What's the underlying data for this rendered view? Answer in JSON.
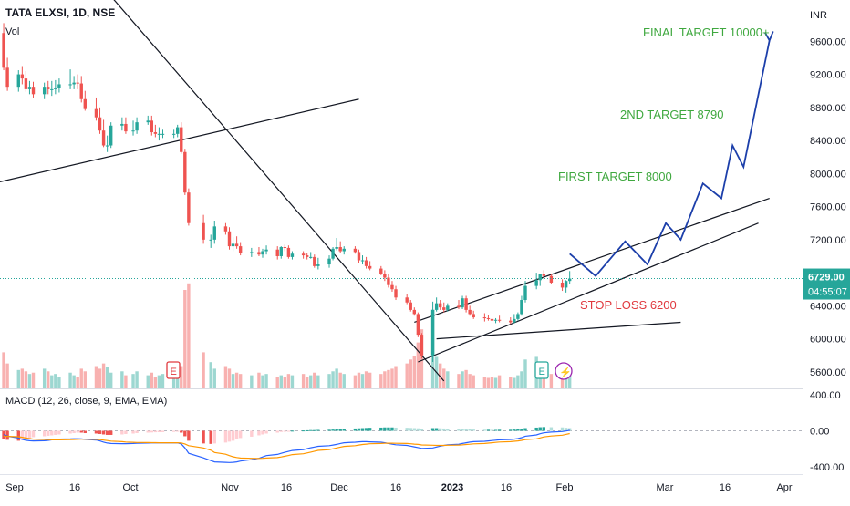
{
  "header": {
    "symbol": "TATA ELXSI, 1D, NSE",
    "vol_label": "Vol",
    "currency": "INR"
  },
  "price_axis": {
    "ticks": [
      5600,
      6000,
      6400,
      6800,
      7200,
      7600,
      8000,
      8400,
      8800,
      9200,
      9600
    ],
    "tick_labels": [
      "5600.00",
      "6000.00",
      "6400.00",
      "6800.00",
      "7200.00",
      "7600.00",
      "8000.00",
      "8400.00",
      "8800.00",
      "9200.00",
      "9600.00"
    ]
  },
  "last_price": {
    "value": 6729,
    "label": "6729.00",
    "countdown": "04:55:07"
  },
  "macd": {
    "title": "MACD (12, 26, close, 9, EMA, EMA)",
    "ticks": [
      400,
      0,
      -400
    ],
    "tick_labels": [
      "400.00",
      "0.00",
      "-400.00"
    ]
  },
  "time_axis": {
    "labels": [
      "Sep",
      "16",
      "Oct",
      "Nov",
      "16",
      "Dec",
      "16",
      "2023",
      "16",
      "Feb",
      "Mar",
      "16",
      "Apr"
    ],
    "label_x": [
      16,
      82,
      143,
      252,
      314,
      372,
      434,
      496,
      555,
      619,
      729,
      795,
      860
    ]
  },
  "annotations": {
    "final_target": "FINAL TARGET 10000+",
    "second_target": "2ND TARGET 8790",
    "first_target": "FIRST TARGET 8000",
    "stop_loss": "STOP LOSS 6200"
  },
  "event_markers": {
    "earnings_symbol": "E",
    "dividend_symbol": "⚡"
  },
  "colors": {
    "up": "#26a69a",
    "down": "#ef5350",
    "projection": "#1c3faa",
    "target_text": "#3fa83f",
    "stop_text": "#e0393e",
    "price_badge": "#26a69a",
    "macd_line": "#2962ff",
    "signal_line": "#ff9800"
  },
  "chart_data": {
    "type": "candlestick",
    "title": "TATA ELXSI, 1D, NSE",
    "x": [
      "2022-09-01",
      "2022-09-02",
      "2022-09-05",
      "2022-09-06",
      "2022-09-07",
      "2022-09-08",
      "2022-09-09",
      "2022-09-12",
      "2022-09-13",
      "2022-09-14",
      "2022-09-15",
      "2022-09-16",
      "2022-09-19",
      "2022-09-20",
      "2022-09-21",
      "2022-09-22",
      "2022-09-23",
      "2022-09-26",
      "2022-09-27",
      "2022-09-28",
      "2022-09-29",
      "2022-09-30",
      "2022-10-03",
      "2022-10-04",
      "2022-10-06",
      "2022-10-07",
      "2022-10-10",
      "2022-10-11",
      "2022-10-12",
      "2022-10-13",
      "2022-10-14",
      "2022-10-17",
      "2022-10-18",
      "2022-10-19",
      "2022-10-20",
      "2022-10-21",
      "2022-10-25",
      "2022-10-27",
      "2022-10-28",
      "2022-10-31",
      "2022-11-01",
      "2022-11-02",
      "2022-11-03",
      "2022-11-04",
      "2022-11-07",
      "2022-11-09",
      "2022-11-10",
      "2022-11-11",
      "2022-11-14",
      "2022-11-15",
      "2022-11-16",
      "2022-11-17",
      "2022-11-18",
      "2022-11-21",
      "2022-11-22",
      "2022-11-23",
      "2022-11-24",
      "2022-11-25",
      "2022-11-28",
      "2022-11-29",
      "2022-11-30",
      "2022-12-01",
      "2022-12-02",
      "2022-12-05",
      "2022-12-06",
      "2022-12-07",
      "2022-12-08",
      "2022-12-09",
      "2022-12-12",
      "2022-12-13",
      "2022-12-14",
      "2022-12-15",
      "2022-12-16",
      "2022-12-19",
      "2022-12-20",
      "2022-12-21",
      "2022-12-22",
      "2022-12-23",
      "2022-12-26",
      "2022-12-27",
      "2022-12-28",
      "2022-12-29",
      "2022-12-30",
      "2023-01-02",
      "2023-01-03",
      "2023-01-04",
      "2023-01-05",
      "2023-01-06",
      "2023-01-09",
      "2023-01-10",
      "2023-01-11",
      "2023-01-12",
      "2023-01-13",
      "2023-01-16",
      "2023-01-17",
      "2023-01-18",
      "2023-01-19",
      "2023-01-20",
      "2023-01-23",
      "2023-01-24",
      "2023-01-25",
      "2023-01-27",
      "2023-01-30",
      "2023-01-31",
      "2023-02-01"
    ],
    "open": [
      9700,
      9280,
      9050,
      9200,
      9150,
      9020,
      9050,
      8960,
      9050,
      9020,
      9020,
      9040,
      9080,
      9080,
      9100,
      9090,
      8900,
      8780,
      8680,
      8520,
      8340,
      8340,
      8580,
      8600,
      8510,
      8520,
      8620,
      8640,
      8500,
      8480,
      8480,
      8480,
      8480,
      8560,
      8260,
      7770,
      7400,
      7200,
      7200,
      7360,
      7300,
      7120,
      7150,
      7120,
      7040,
      7050,
      7020,
      7060,
      7080,
      7000,
      7110,
      7100,
      6990,
      7030,
      7010,
      6990,
      6990,
      6880,
      6900,
      6970,
      7090,
      7110,
      7060,
      7090,
      7050,
      6950,
      6950,
      6880,
      6850,
      6790,
      6740,
      6650,
      6600,
      6500,
      6440,
      6350,
      6300,
      6050,
      5800,
      6350,
      6430,
      6380,
      6350,
      6400,
      6380,
      6490,
      6350,
      6300,
      6260,
      6250,
      6240,
      6220,
      6230,
      6220,
      6200,
      6240,
      6300,
      6470,
      6640,
      6710,
      6780,
      6760,
      6680,
      6620,
      6700
    ],
    "high": [
      9820,
      9400,
      9250,
      9300,
      9240,
      9120,
      9110,
      9100,
      9120,
      9120,
      9130,
      9150,
      9260,
      9180,
      9200,
      9180,
      9000,
      8920,
      8800,
      8650,
      8460,
      8620,
      8680,
      8680,
      8640,
      8680,
      8700,
      8700,
      8590,
      8560,
      8530,
      8530,
      8590,
      8620,
      8300,
      7820,
      7500,
      7260,
      7430,
      7400,
      7350,
      7230,
      7240,
      7170,
      7100,
      7110,
      7090,
      7130,
      7120,
      7120,
      7140,
      7130,
      7060,
      7060,
      7040,
      7050,
      7020,
      6980,
      7010,
      7110,
      7220,
      7180,
      7120,
      7120,
      7080,
      7010,
      6990,
      6940,
      6880,
      6830,
      6780,
      6700,
      6640,
      6540,
      6470,
      6380,
      6320,
      6070,
      6450,
      6500,
      6470,
      6440,
      6430,
      6470,
      6520,
      6520,
      6400,
      6340,
      6310,
      6290,
      6280,
      6250,
      6280,
      6260,
      6300,
      6320,
      6520,
      6700,
      6800,
      6790,
      6830,
      6790,
      6720,
      6710,
      6820
    ],
    "low": [
      9250,
      9000,
      8990,
      9080,
      8990,
      8960,
      8920,
      8900,
      8960,
      8940,
      8960,
      8980,
      9020,
      9020,
      9020,
      8860,
      8760,
      8640,
      8480,
      8320,
      8260,
      8310,
      8520,
      8480,
      8460,
      8480,
      8590,
      8460,
      8440,
      8400,
      8430,
      8430,
      8440,
      8240,
      7740,
      7370,
      7150,
      7100,
      7150,
      7260,
      7080,
      7060,
      7090,
      7010,
      6990,
      7000,
      6980,
      7020,
      6960,
      6970,
      7060,
      6970,
      6960,
      6970,
      6960,
      6970,
      6860,
      6840,
      6860,
      6950,
      7070,
      7040,
      7020,
      7030,
      6920,
      6900,
      6850,
      6830,
      6770,
      6700,
      6620,
      6570,
      6470,
      6420,
      6330,
      6280,
      6020,
      5760,
      5720,
      6330,
      6350,
      6320,
      6330,
      6360,
      6360,
      6320,
      6280,
      6240,
      6210,
      6220,
      6200,
      6190,
      6200,
      6180,
      6190,
      6220,
      6280,
      6440,
      6600,
      6640,
      6720,
      6660,
      6580,
      6560,
      6660
    ],
    "close": [
      9280,
      9050,
      9200,
      9150,
      9020,
      9050,
      8960,
      9050,
      9020,
      9020,
      9040,
      9080,
      9080,
      9100,
      9090,
      8900,
      8780,
      8680,
      8520,
      8340,
      8340,
      8580,
      8600,
      8510,
      8520,
      8620,
      8640,
      8500,
      8480,
      8480,
      8480,
      8480,
      8560,
      8260,
      7770,
      7400,
      7200,
      7200,
      7360,
      7300,
      7120,
      7150,
      7120,
      7040,
      7050,
      7020,
      7060,
      7080,
      7000,
      7110,
      7100,
      6990,
      7030,
      7010,
      6990,
      6990,
      6880,
      6900,
      6970,
      7090,
      7110,
      7060,
      7090,
      7050,
      6950,
      6950,
      6880,
      6850,
      6790,
      6740,
      6650,
      6600,
      6500,
      6440,
      6350,
      6300,
      6050,
      5800,
      6350,
      6430,
      6380,
      6350,
      6400,
      6380,
      6490,
      6350,
      6300,
      6260,
      6250,
      6240,
      6220,
      6230,
      6220,
      6200,
      6240,
      6300,
      6470,
      6640,
      6710,
      6780,
      6760,
      6680,
      6620,
      6700,
      6729
    ],
    "volume_note": "",
    "volume": [
      55,
      38,
      28,
      30,
      26,
      22,
      24,
      30,
      26,
      20,
      22,
      18,
      24,
      20,
      18,
      30,
      26,
      34,
      30,
      38,
      32,
      24,
      26,
      20,
      22,
      26,
      20,
      24,
      18,
      20,
      22,
      16,
      20,
      34,
      150,
      160,
      55,
      40,
      30,
      34,
      30,
      22,
      24,
      22,
      20,
      24,
      20,
      22,
      18,
      20,
      18,
      22,
      20,
      22,
      18,
      20,
      24,
      20,
      22,
      26,
      30,
      24,
      22,
      20,
      24,
      22,
      26,
      24,
      22,
      26,
      28,
      30,
      34,
      38,
      44,
      50,
      70,
      90,
      120,
      48,
      38,
      30,
      26,
      22,
      26,
      28,
      22,
      20,
      18,
      16,
      18,
      16,
      20,
      18,
      16,
      20,
      26,
      44,
      48,
      30,
      26,
      22,
      20,
      18,
      22
    ],
    "macd_histogram": [
      -90,
      -100,
      -110,
      -100,
      -90,
      -80,
      -70,
      -60,
      -55,
      -50,
      -45,
      -40,
      -30,
      -25,
      -20,
      -20,
      -25,
      -30,
      -35,
      -40,
      -45,
      -45,
      -40,
      -35,
      -30,
      -25,
      -20,
      -18,
      -16,
      -15,
      -14,
      -12,
      -10,
      -20,
      -60,
      -110,
      -140,
      -145,
      -140,
      -130,
      -120,
      -110,
      -95,
      -80,
      -65,
      -50,
      -40,
      -30,
      -20,
      -12,
      -6,
      -2,
      2,
      4,
      6,
      8,
      8,
      10,
      12,
      14,
      18,
      22,
      24,
      26,
      28,
      30,
      32,
      34,
      36,
      38,
      38,
      38,
      36,
      34,
      32,
      30,
      28,
      22,
      30,
      30,
      28,
      26,
      24,
      22,
      20,
      18,
      16,
      14,
      12,
      12,
      10,
      10,
      12,
      12,
      14,
      16,
      22,
      30,
      36,
      40,
      42,
      40,
      38,
      34,
      30
    ],
    "macd_line": [
      -40,
      -60,
      -80,
      -95,
      -105,
      -110,
      -112,
      -110,
      -106,
      -100,
      -95,
      -92,
      -90,
      -88,
      -88,
      -90,
      -95,
      -102,
      -112,
      -125,
      -135,
      -140,
      -142,
      -142,
      -140,
      -138,
      -135,
      -134,
      -134,
      -134,
      -134,
      -134,
      -133,
      -145,
      -190,
      -250,
      -300,
      -330,
      -345,
      -350,
      -352,
      -350,
      -345,
      -335,
      -320,
      -305,
      -290,
      -275,
      -262,
      -250,
      -238,
      -228,
      -218,
      -208,
      -198,
      -188,
      -180,
      -172,
      -165,
      -158,
      -150,
      -140,
      -132,
      -126,
      -122,
      -120,
      -120,
      -122,
      -126,
      -132,
      -140,
      -148,
      -155,
      -162,
      -170,
      -178,
      -186,
      -195,
      -190,
      -180,
      -170,
      -162,
      -155,
      -148,
      -140,
      -132,
      -125,
      -120,
      -116,
      -112,
      -108,
      -104,
      -100,
      -96,
      -92,
      -86,
      -76,
      -60,
      -45,
      -32,
      -22,
      -14,
      -8,
      -2,
      5
    ],
    "signal_line": [
      -60,
      -62,
      -66,
      -72,
      -80,
      -86,
      -92,
      -96,
      -98,
      -100,
      -100,
      -100,
      -98,
      -96,
      -94,
      -93,
      -93,
      -95,
      -98,
      -103,
      -108,
      -114,
      -120,
      -124,
      -127,
      -129,
      -130,
      -131,
      -131,
      -132,
      -132,
      -132,
      -132,
      -134,
      -145,
      -165,
      -190,
      -215,
      -240,
      -260,
      -275,
      -288,
      -296,
      -302,
      -305,
      -306,
      -305,
      -302,
      -297,
      -290,
      -282,
      -274,
      -264,
      -255,
      -245,
      -236,
      -226,
      -217,
      -208,
      -199,
      -190,
      -181,
      -173,
      -165,
      -158,
      -152,
      -147,
      -143,
      -140,
      -138,
      -137,
      -137,
      -138,
      -140,
      -143,
      -147,
      -151,
      -157,
      -160,
      -162,
      -162,
      -162,
      -160,
      -158,
      -156,
      -152,
      -148,
      -144,
      -140,
      -136,
      -132,
      -128,
      -124,
      -120,
      -116,
      -112,
      -106,
      -98,
      -89,
      -79,
      -68,
      -58,
      -48,
      -39,
      -30
    ],
    "projection_path": {
      "x": [
        "2023-02-01",
        "2023-02-08",
        "2023-02-16",
        "2023-02-22",
        "2023-02-27",
        "2023-03-03",
        "2023-03-09",
        "2023-03-14",
        "2023-03-17",
        "2023-03-20",
        "2023-03-27"
      ],
      "y": [
        7030,
        6760,
        7180,
        6900,
        7400,
        7200,
        7880,
        7700,
        8340,
        8080,
        9610
      ],
      "note": ""
    },
    "trendlines": [
      {
        "x": [
          "2022-08-31",
          "2022-12-06"
        ],
        "y": [
          7900,
          8900
        ]
      },
      {
        "x": [
          "2022-09-27",
          "2022-12-29"
        ],
        "y": [
          10300,
          5490
        ]
      },
      {
        "x": [
          "2022-12-21",
          "2023-03-27"
        ],
        "y": [
          6200,
          7700
        ]
      },
      {
        "x": [
          "2022-12-22",
          "2023-03-24"
        ],
        "y": [
          5720,
          7400
        ]
      },
      {
        "x": [
          "2022-12-27",
          "2023-03-03"
        ],
        "y": [
          6000,
          6200
        ]
      }
    ],
    "ylim": [
      5400,
      10100
    ],
    "macd_ylim": [
      -480,
      460
    ],
    "grid": false,
    "xlabel": "",
    "ylabel": ""
  }
}
